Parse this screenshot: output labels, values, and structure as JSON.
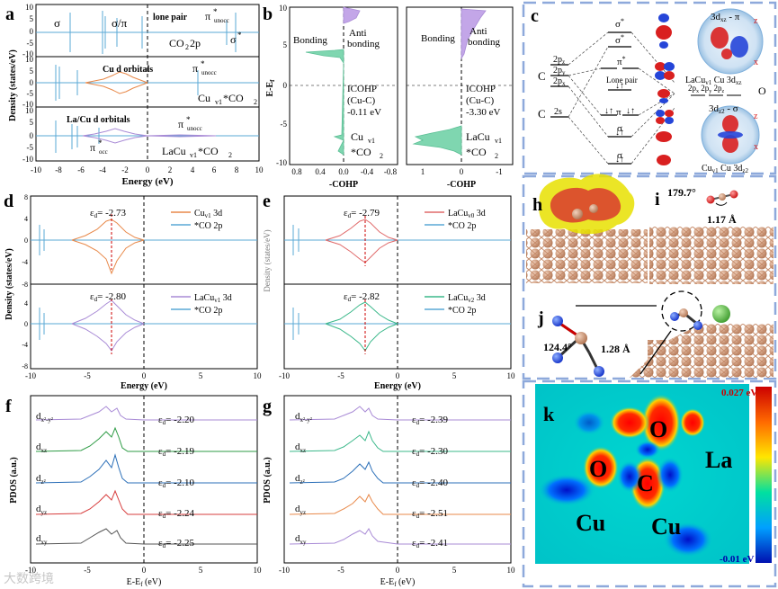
{
  "colors": {
    "frame_blue": "#8EA9DB",
    "cyan": "#5AA9D6",
    "orange": "#E8894A",
    "purple": "#A98BD6",
    "mint": "#7FD6B0",
    "salmon": "#E06A6A",
    "green": "#2E9B45",
    "blue": "#2B6FB8",
    "red": "#D73C3C",
    "gray": "#555555"
  },
  "panel_a": {
    "label": "a",
    "ylabel": "Density (states/eV)",
    "xlabel": "Energy (eV)",
    "xticks": [
      "-10",
      "-8",
      "-6",
      "-4",
      "-2",
      "0",
      "2",
      "4",
      "6",
      "8",
      "10"
    ],
    "top": {
      "yticks": [
        "10",
        "5",
        "0",
        "-5",
        "-10"
      ],
      "labels": {
        "sigma": "σ",
        "sigma_pi": "σ/π",
        "lone_pair": "lone pair",
        "pi_unocc": "π",
        "pi_unocc_sup": "*",
        "pi_unocc_sub": "unocc",
        "sigma_star": "σ",
        "sigma_star_sup": "*",
        "species": "CO",
        "species_sub": "2",
        "species_tail": " 2p"
      }
    },
    "mid": {
      "yticks": [
        "10",
        "5",
        "0",
        "-5",
        "-10"
      ],
      "labels": {
        "orbital": "Cu d orbitals",
        "pi_unocc": "π",
        "pi_unocc_sup": "*",
        "pi_unocc_sub": "unocc",
        "species_a": "Cu",
        "species_a_sub": "v1",
        "species_b": " *CO",
        "species_b_sub": "2"
      }
    },
    "bot": {
      "yticks": [
        "10",
        "5",
        "0",
        "-5",
        "-10"
      ],
      "labels": {
        "orbital": "La/Cu d orbitals",
        "pi_unocc": "π",
        "pi_unocc_sup": "*",
        "pi_unocc_sub": "unocc",
        "pi_occ": "π",
        "pi_occ_sup": "*",
        "pi_occ_sub": "occ",
        "species_a": "LaCu",
        "species_a_sub": "v1",
        "species_b": " *CO",
        "species_b_sub": "2"
      }
    }
  },
  "panel_b": {
    "label": "b",
    "ylabel": "E-E",
    "ylabel_sub": "f",
    "yticks": [
      "10",
      "5",
      "0",
      "-5",
      "-10"
    ],
    "left": {
      "xticks": [
        "0.8",
        "0.4",
        "0.0",
        "-0.4",
        "-0.8"
      ],
      "xlabel": "-COHP",
      "bonding": "Bonding",
      "anti_1": "Anti",
      "anti_2": "bonding",
      "icohp": "ICOHP",
      "pair": "(Cu-C)",
      "value": "-0.11 eV",
      "species_a": "Cu",
      "species_a_sub": "v1",
      "species_b": "*CO",
      "species_b_sub": "2"
    },
    "right": {
      "xticks": [
        "1",
        "0",
        "-1"
      ],
      "xlabel": "-COHP",
      "bonding": "Bonding",
      "anti_1": "Anti",
      "anti_2": "bonding",
      "icohp": "ICOHP",
      "pair": "(Cu-C)",
      "value": "-3.30 eV",
      "species_a": "LaCu",
      "species_a_sub": "v1",
      "species_b": "*CO",
      "species_b_sub": "2"
    }
  },
  "panel_c": {
    "label": "c",
    "left_atom_1": "C",
    "left_atom_2": "C",
    "orb_2pz": "2p",
    "orb_2pz_sub": "z",
    "orb_2py": "2p",
    "orb_2py_sub": "y",
    "orb_2px": "2p",
    "orb_2px_sub": "x",
    "orb_2s": "2s",
    "mo_sigma_star": "σ",
    "mo_pi_star": "π",
    "star": "*",
    "mo_sigma_mid": "σ",
    "mo_pi": "π",
    "lone_pair": "Lone pair",
    "mo_sigma_low": "σ",
    "mo_sigma_low2": "σ",
    "right_atom": "O",
    "right_orbs": "2p",
    "right_orbs_x": "x",
    "right_orbs_y": "y",
    "right_orbs_z": "z",
    "top_title": "3d",
    "top_title_sub": "xz",
    "top_title_tail": " - π",
    "top_cap": "LaCu",
    "top_cap_sub": "v1",
    "top_cap_tail": " Cu 3d",
    "top_cap_tail_sub": "xz",
    "bot_title": "3d",
    "bot_title_sub": "z2",
    "bot_title_tail": " - σ",
    "bot_cap": "Cu",
    "bot_cap_sub": "v1",
    "bot_cap_tail": " Cu 3d",
    "bot_cap_tail_sub": "z2",
    "axis_z": "z",
    "axis_x": "x"
  },
  "panel_d": {
    "label": "d",
    "ylabel": "Density (states/eV)",
    "xlabel": "Energy (eV)",
    "xticks": [
      "-10",
      "-5",
      "0",
      "5",
      "10"
    ],
    "top": {
      "yticks": [
        "8",
        "6",
        "4",
        "2",
        "0",
        "-2",
        "-4",
        "-6",
        "-8"
      ],
      "ed": "ε",
      "ed_sub": "d",
      "ed_value": "= -2.73",
      "ed_num": -2.73,
      "legend_a": "Cu",
      "legend_a_sub": "v1",
      "legend_a_tail": " 3d",
      "legend_b": "*CO 2p"
    },
    "bot": {
      "yticks": [
        "8",
        "6",
        "4",
        "2",
        "0",
        "-2",
        "-4",
        "-6",
        "-8"
      ],
      "ed": "ε",
      "ed_sub": "d",
      "ed_value": "= -2.80",
      "ed_num": -2.8,
      "legend_a": "LaCu",
      "legend_a_sub": "v1",
      "legend_a_tail": " 3d",
      "legend_b": "*CO 2p"
    }
  },
  "panel_e": {
    "label": "e",
    "ylabel": "Density (states/eV)",
    "xlabel": "Energy (eV)",
    "xticks": [
      "-10",
      "-5",
      "0",
      "5",
      "10"
    ],
    "top": {
      "ed": "ε",
      "ed_sub": "d",
      "ed_value": "= -2.79",
      "ed_num": -2.79,
      "legend_a": "LaCu",
      "legend_a_sub": "v0",
      "legend_a_tail": " 3d",
      "legend_b": "*CO 2p"
    },
    "bot": {
      "ed": "ε",
      "ed_sub": "d",
      "ed_value": "= -2.82",
      "ed_num": -2.82,
      "legend_a": "LaCu",
      "legend_a_sub": "v2",
      "legend_a_tail": " 3d",
      "legend_b": "*CO 2p"
    }
  },
  "panel_f": {
    "label": "f",
    "ylabel": "PDOS (a.u.)",
    "xlabel": "E-E",
    "xlabel_sub": "f",
    "xlabel_tail": " (eV)",
    "xticks": [
      "-10",
      "-5",
      "0",
      "5",
      "10"
    ],
    "rows": [
      {
        "orb": "d",
        "orb_sub": "x²-y²",
        "ed": "ε",
        "ed_sub": "d",
        "value": "= -2.20"
      },
      {
        "orb": "d",
        "orb_sub": "xz",
        "ed": "ε",
        "ed_sub": "d",
        "value": "= -2.19"
      },
      {
        "orb": "d",
        "orb_sub": "z²",
        "ed": "ε",
        "ed_sub": "d",
        "value": "= -2.10"
      },
      {
        "orb": "d",
        "orb_sub": "yz",
        "ed": "ε",
        "ed_sub": "d",
        "value": "= -2.24"
      },
      {
        "orb": "d",
        "orb_sub": "xy",
        "ed": "ε",
        "ed_sub": "d",
        "value": "= -2.25"
      }
    ]
  },
  "panel_g": {
    "label": "g",
    "ylabel": "PDOS (a.u.)",
    "xlabel": "E-E",
    "xlabel_sub": "f",
    "xlabel_tail": " (eV)",
    "xticks": [
      "-10",
      "-5",
      "0",
      "5",
      "10"
    ],
    "rows": [
      {
        "orb": "d",
        "orb_sub": "x²-y²",
        "ed": "ε",
        "ed_sub": "d",
        "value": "= -2.39"
      },
      {
        "orb": "d",
        "orb_sub": "xz",
        "ed": "ε",
        "ed_sub": "d",
        "value": "= -2.30"
      },
      {
        "orb": "d",
        "orb_sub": "z²",
        "ed": "ε",
        "ed_sub": "d",
        "value": "= -2.40"
      },
      {
        "orb": "d",
        "orb_sub": "yz",
        "ed": "ε",
        "ed_sub": "d",
        "value": "= -2.51"
      },
      {
        "orb": "d",
        "orb_sub": "xy",
        "ed": "ε",
        "ed_sub": "d",
        "value": "= -2.41"
      }
    ]
  },
  "panel_h": {
    "label": "h"
  },
  "panel_i": {
    "label": "i",
    "angle": "179.7°",
    "bond": "1.17 Å"
  },
  "panel_j": {
    "label": "j",
    "angle": "124.4°",
    "bond": "1.28 Å"
  },
  "panel_k": {
    "label": "k",
    "top_value": "0.027 eV",
    "bottom_value": "-0.01 eV",
    "atoms": {
      "o1": "O",
      "o2": "O",
      "c": "C",
      "la": "La",
      "cu1": "Cu",
      "cu2": "Cu"
    }
  },
  "watermark": "大数跨境"
}
